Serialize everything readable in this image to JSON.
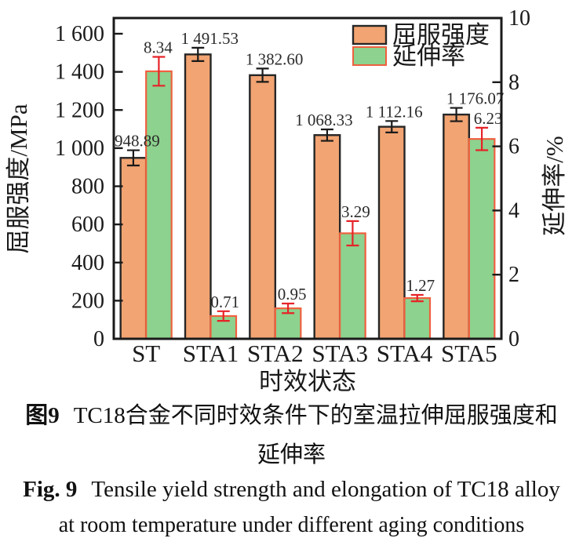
{
  "chart_data": {
    "type": "bar",
    "categories": [
      "ST",
      "STA1",
      "STA2",
      "STA3",
      "STA4",
      "STA5"
    ],
    "series": [
      {
        "name": "屈服强度",
        "axis": "left",
        "color": "#F2A472",
        "border_color": "#262626",
        "error_color": "#1a1a1a",
        "values": [
          948.89,
          1491.53,
          1382.6,
          1068.33,
          1112.16,
          1176.07
        ],
        "errors": [
          40,
          35,
          35,
          30,
          30,
          35
        ],
        "labels": [
          "948.89",
          "1 491.53",
          "1 382.60",
          "1 068.33",
          "1 112.16",
          "1 176.07"
        ]
      },
      {
        "name": "延伸率",
        "axis": "right",
        "color": "#8DD28E",
        "border_color": "#F0603F",
        "error_color": "#E62328",
        "values": [
          8.34,
          0.71,
          0.95,
          3.29,
          1.27,
          6.23
        ],
        "errors": [
          0.45,
          0.15,
          0.15,
          0.38,
          0.1,
          0.35
        ],
        "labels": [
          "8.34",
          "0.71",
          "0.95",
          "3.29",
          "1.27",
          "6.23"
        ]
      }
    ],
    "left_axis": {
      "label": "屈服强度/MPa",
      "ticks": [
        0,
        200,
        400,
        600,
        800,
        1000,
        1200,
        1400,
        1600
      ],
      "tick_labels": [
        "0",
        "200",
        "400",
        "600",
        "800",
        "1 000",
        "1 200",
        "1 400",
        "1 600"
      ],
      "range_max_at_frame_top": 1682
    },
    "right_axis": {
      "label": "延伸率/%",
      "ticks": [
        0,
        2,
        4,
        6,
        8,
        10
      ],
      "tick_labels": [
        "0",
        "2",
        "4",
        "6",
        "8",
        "10"
      ],
      "max": 10
    },
    "x_axis": {
      "label": "时效状态"
    },
    "legend": {
      "position": "top-right",
      "entries": [
        "屈服强度",
        "延伸率"
      ]
    },
    "grid": false,
    "frame_color": "#1a1a1a"
  },
  "caption": {
    "zh_prefix": "图9",
    "zh_line1": "TC18合金不同时效条件下的室温拉伸屈服强度和",
    "zh_line2": "延伸率",
    "en_prefix": "Fig. 9",
    "en_line1": "Tensile yield strength and elongation of TC18 alloy",
    "en_line2": "at room temperature under different aging conditions"
  }
}
